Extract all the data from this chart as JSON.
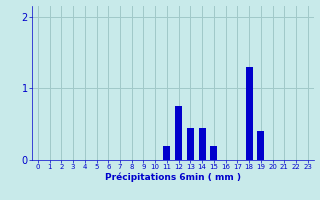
{
  "hours": [
    0,
    1,
    2,
    3,
    4,
    5,
    6,
    7,
    8,
    9,
    10,
    11,
    12,
    13,
    14,
    15,
    16,
    17,
    18,
    19,
    20,
    21,
    22,
    23
  ],
  "values": [
    0,
    0,
    0,
    0,
    0,
    0,
    0,
    0,
    0,
    0,
    0,
    0.2,
    0.75,
    0.45,
    0.45,
    0.2,
    0,
    0,
    1.3,
    0.4,
    0,
    0,
    0,
    0
  ],
  "bar_color": "#0000cc",
  "bg_color": "#c8eaea",
  "grid_color": "#a0c8c8",
  "xlabel": "Précipitations 6min ( mm )",
  "xlabel_color": "#0000cc",
  "ylabel_color": "#0000cc",
  "tick_color": "#0000cc",
  "ylim": [
    0,
    2.15
  ],
  "yticks": [
    0,
    1,
    2
  ],
  "bar_width": 0.6,
  "tick_fontsize": 5.0,
  "xlabel_fontsize": 6.5
}
